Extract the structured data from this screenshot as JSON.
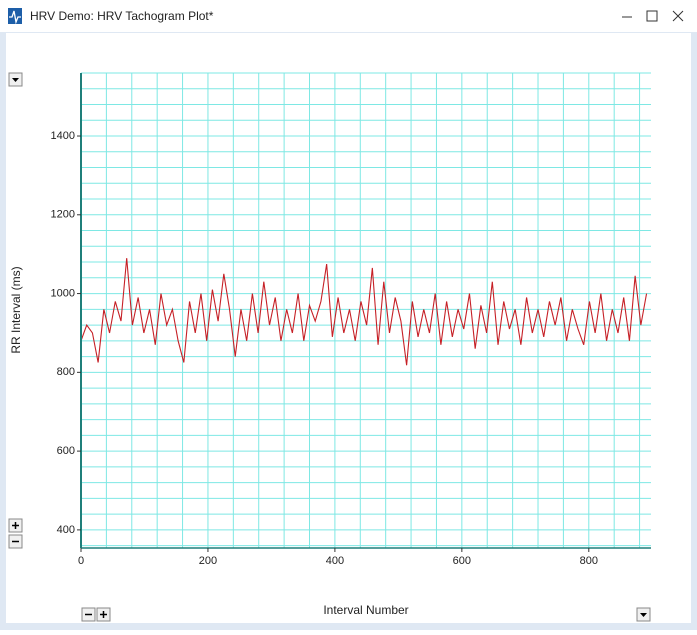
{
  "window": {
    "title": "HRV Demo: HRV Tachogram Plot*"
  },
  "chart_data": {
    "type": "line",
    "xlabel": "Interval Number",
    "ylabel": "RR Interval (ms)",
    "x": [
      0,
      9,
      18,
      27,
      36,
      45,
      54,
      63,
      72,
      81,
      90,
      99,
      108,
      117,
      126,
      135,
      144,
      153,
      162,
      171,
      180,
      189,
      198,
      207,
      216,
      225,
      234,
      243,
      252,
      261,
      270,
      279,
      288,
      297,
      306,
      315,
      324,
      333,
      342,
      351,
      360,
      369,
      378,
      387,
      396,
      405,
      414,
      423,
      432,
      441,
      450,
      459,
      468,
      477,
      486,
      495,
      504,
      513,
      522,
      531,
      540,
      549,
      558,
      567,
      576,
      585,
      594,
      603,
      612,
      621,
      630,
      639,
      648,
      657,
      666,
      675,
      684,
      693,
      702,
      711,
      720,
      729,
      738,
      747,
      756,
      765,
      774,
      783,
      792,
      801,
      810,
      819,
      828,
      837,
      846,
      855,
      864,
      873,
      882,
      891
    ],
    "series": [
      {
        "name": "RR Interval",
        "color": "#c62026",
        "values": [
          880,
          920,
          900,
          825,
          960,
          900,
          980,
          930,
          1090,
          920,
          990,
          900,
          960,
          870,
          1000,
          920,
          960,
          880,
          825,
          980,
          900,
          1000,
          880,
          1010,
          930,
          1050,
          960,
          840,
          960,
          880,
          1000,
          900,
          1030,
          920,
          990,
          880,
          960,
          900,
          1000,
          880,
          970,
          930,
          980,
          1075,
          890,
          990,
          900,
          960,
          880,
          980,
          920,
          1065,
          870,
          1030,
          900,
          990,
          930,
          818,
          980,
          890,
          960,
          900,
          1000,
          870,
          980,
          890,
          960,
          910,
          1000,
          860,
          970,
          900,
          1030,
          870,
          980,
          910,
          960,
          870,
          990,
          900,
          960,
          890,
          980,
          920,
          990,
          880,
          960,
          910,
          870,
          980,
          900,
          1000,
          880,
          960,
          900,
          990,
          880,
          1045,
          920,
          1000
        ]
      }
    ],
    "xlim": [
      0,
      898
    ],
    "ylim": [
      354,
      1560
    ],
    "xticks": [
      0,
      200,
      400,
      600,
      800
    ],
    "yticks": [
      400,
      600,
      800,
      1000,
      1200,
      1400
    ],
    "xgrid": [
      0,
      40,
      80,
      120,
      160,
      200,
      240,
      280,
      320,
      360,
      400,
      440,
      480,
      520,
      560,
      600,
      640,
      680,
      720,
      760,
      800,
      840,
      880
    ],
    "ygrid": [
      360,
      400,
      440,
      480,
      520,
      560,
      600,
      640,
      680,
      720,
      760,
      800,
      840,
      880,
      920,
      960,
      1000,
      1040,
      1080,
      1120,
      1160,
      1200,
      1240,
      1280,
      1320,
      1360,
      1400,
      1440,
      1480,
      1520,
      1560
    ],
    "grid": true,
    "grid_color": "#7ee8e4"
  }
}
